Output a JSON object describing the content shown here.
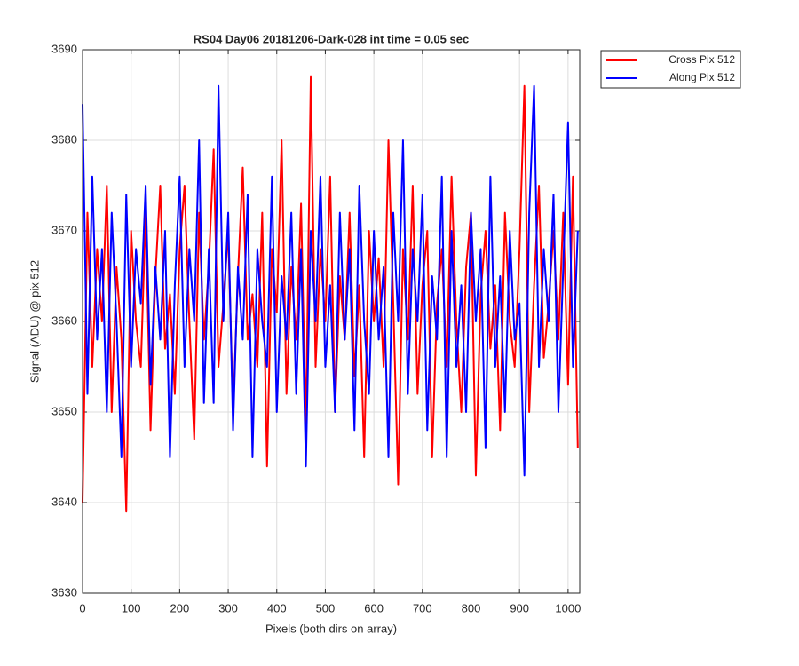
{
  "chart_data": {
    "type": "line",
    "title": "RS04 Day06 20181206-Dark-028 int time = 0.05 sec",
    "x_label": "Pixels (both dirs on array)",
    "y_label": "Signal (ADU) @ pix 512",
    "xlim": [
      0,
      1024
    ],
    "ylim": [
      3630,
      3690
    ],
    "xticks": [
      0,
      100,
      200,
      300,
      400,
      500,
      600,
      700,
      800,
      900,
      1000
    ],
    "yticks": [
      3630,
      3640,
      3650,
      3660,
      3670,
      3680,
      3690
    ],
    "grid": true,
    "legend": "northeast-outside",
    "x": [
      0,
      10,
      20,
      30,
      40,
      50,
      60,
      70,
      80,
      90,
      100,
      110,
      120,
      130,
      140,
      150,
      160,
      170,
      180,
      190,
      200,
      210,
      220,
      230,
      240,
      250,
      260,
      270,
      280,
      290,
      300,
      310,
      320,
      330,
      340,
      350,
      360,
      370,
      380,
      390,
      400,
      410,
      420,
      430,
      440,
      450,
      460,
      470,
      480,
      490,
      500,
      510,
      520,
      530,
      540,
      550,
      560,
      570,
      580,
      590,
      600,
      610,
      620,
      630,
      640,
      650,
      660,
      670,
      680,
      690,
      700,
      710,
      720,
      730,
      740,
      750,
      760,
      770,
      780,
      790,
      800,
      810,
      820,
      830,
      840,
      850,
      860,
      870,
      880,
      890,
      900,
      910,
      920,
      930,
      940,
      950,
      960,
      970,
      980,
      990,
      1000,
      1010,
      1020
    ],
    "series": [
      {
        "name": "Cross Pix 512",
        "color": "#ff0000",
        "values": [
          3640,
          3672,
          3655,
          3668,
          3660,
          3675,
          3650,
          3666,
          3658,
          3639,
          3670,
          3660,
          3655,
          3672,
          3648,
          3665,
          3675,
          3657,
          3663,
          3652,
          3668,
          3675,
          3660,
          3647,
          3672,
          3658,
          3666,
          3679,
          3655,
          3662,
          3670,
          3650,
          3665,
          3677,
          3658,
          3663,
          3655,
          3672,
          3644,
          3668,
          3661,
          3680,
          3652,
          3666,
          3658,
          3673,
          3648,
          3687,
          3655,
          3668,
          3660,
          3676,
          3650,
          3665,
          3658,
          3672,
          3654,
          3664,
          3645,
          3670,
          3660,
          3667,
          3655,
          3680,
          3662,
          3642,
          3668,
          3658,
          3675,
          3652,
          3664,
          3670,
          3645,
          3662,
          3668,
          3655,
          3676,
          3660,
          3650,
          3666,
          3672,
          3643,
          3663,
          3670,
          3657,
          3664,
          3648,
          3672,
          3660,
          3655,
          3668,
          3686,
          3650,
          3664,
          3675,
          3656,
          3662,
          3670,
          3658,
          3672,
          3653,
          3676,
          3646
        ]
      },
      {
        "name": "Along Pix 512",
        "color": "#0000ff",
        "values": [
          3684,
          3652,
          3676,
          3658,
          3668,
          3650,
          3672,
          3660,
          3645,
          3674,
          3655,
          3668,
          3662,
          3675,
          3653,
          3666,
          3658,
          3670,
          3645,
          3664,
          3676,
          3655,
          3668,
          3660,
          3680,
          3651,
          3668,
          3651,
          3686,
          3660,
          3672,
          3648,
          3666,
          3658,
          3674,
          3645,
          3668,
          3660,
          3655,
          3676,
          3650,
          3665,
          3658,
          3672,
          3652,
          3668,
          3644,
          3670,
          3660,
          3676,
          3655,
          3664,
          3650,
          3672,
          3658,
          3668,
          3648,
          3675,
          3660,
          3652,
          3670,
          3658,
          3666,
          3645,
          3672,
          3660,
          3680,
          3652,
          3668,
          3660,
          3674,
          3648,
          3665,
          3658,
          3676,
          3645,
          3670,
          3655,
          3664,
          3650,
          3672,
          3660,
          3668,
          3646,
          3676,
          3655,
          3665,
          3650,
          3670,
          3658,
          3662,
          3643,
          3672,
          3686,
          3655,
          3668,
          3660,
          3674,
          3650,
          3666,
          3682,
          3655,
          3670
        ]
      }
    ]
  }
}
